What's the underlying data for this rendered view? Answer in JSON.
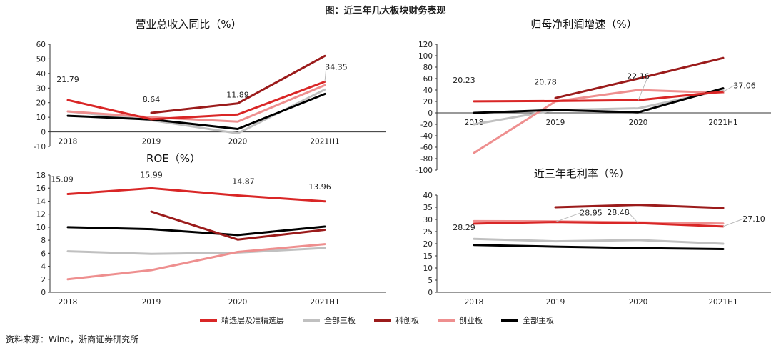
{
  "figure_title": "图：近三年几大板块财务表现",
  "source": "资料来源：Wind，浙商证券研究所",
  "legend": [
    {
      "name": "精选层及准精选层",
      "color": "#d92626"
    },
    {
      "name": "全部三板",
      "color": "#c0c0c0"
    },
    {
      "name": "科创板",
      "color": "#9b1b1b"
    },
    {
      "name": "创业板",
      "color": "#ee8f8f"
    },
    {
      "name": "全部主板",
      "color": "#000000"
    }
  ],
  "chart_data": [
    {
      "type": "line",
      "title": "营业总收入同比（%）",
      "categories": [
        "2018",
        "2019",
        "2020",
        "2021H1"
      ],
      "ylim": [
        -10,
        60
      ],
      "yticks": [
        -10,
        0,
        10,
        20,
        30,
        40,
        50,
        60
      ],
      "series": [
        {
          "name": "精选层及准精选层",
          "color": "#d92626",
          "values": [
            21.79,
            8.64,
            11.89,
            34.35
          ]
        },
        {
          "name": "全部三板",
          "color": "#c0c0c0",
          "values": [
            14,
            8,
            -1,
            29
          ]
        },
        {
          "name": "科创板",
          "color": "#9b1b1b",
          "values": [
            null,
            13,
            19.5,
            52
          ]
        },
        {
          "name": "创业板",
          "color": "#ee8f8f",
          "values": [
            14,
            10,
            7,
            32
          ]
        },
        {
          "name": "全部主板",
          "color": "#000000",
          "values": [
            11,
            8.5,
            2,
            26
          ]
        }
      ],
      "labels": [
        {
          "series": 0,
          "index": 0,
          "text": "21.79"
        },
        {
          "series": 0,
          "index": 1,
          "text": "8.64"
        },
        {
          "series": 0,
          "index": 2,
          "text": "11.89"
        },
        {
          "series": 0,
          "index": 3,
          "text": "34.35"
        }
      ]
    },
    {
      "type": "line",
      "title": "归母净利润增速（%）",
      "categories": [
        "2018",
        "2019",
        "2020",
        "2021H1"
      ],
      "ylim": [
        -100,
        120
      ],
      "yticks": [
        -100,
        -80,
        -60,
        -40,
        -20,
        0,
        20,
        40,
        60,
        80,
        100,
        120
      ],
      "series": [
        {
          "name": "精选层及准精选层",
          "color": "#d92626",
          "values": [
            20.23,
            20.78,
            22.16,
            37.06
          ]
        },
        {
          "name": "全部三板",
          "color": "#c0c0c0",
          "values": [
            -20,
            5,
            8,
            40
          ]
        },
        {
          "name": "科创板",
          "color": "#9b1b1b",
          "values": [
            null,
            26,
            60,
            96
          ]
        },
        {
          "name": "创业板",
          "color": "#ee8f8f",
          "values": [
            -70,
            20,
            40,
            35
          ]
        },
        {
          "name": "全部主板",
          "color": "#000000",
          "values": [
            0,
            5,
            1,
            43
          ]
        }
      ],
      "labels": [
        {
          "series": 0,
          "index": 0,
          "text": "20.23"
        },
        {
          "series": 0,
          "index": 1,
          "text": "20.78"
        },
        {
          "series": 0,
          "index": 2,
          "text": "22.16"
        },
        {
          "series": 0,
          "index": 3,
          "text": "37.06"
        }
      ]
    },
    {
      "type": "line",
      "title": "ROE（%）",
      "categories": [
        "2018",
        "2019",
        "2020",
        "2021H1"
      ],
      "ylim": [
        0,
        18
      ],
      "yticks": [
        0,
        2,
        4,
        6,
        8,
        10,
        12,
        14,
        16,
        18
      ],
      "series": [
        {
          "name": "精选层及准精选层",
          "color": "#d92626",
          "values": [
            15.09,
            15.99,
            14.87,
            13.96
          ]
        },
        {
          "name": "全部三板",
          "color": "#c0c0c0",
          "values": [
            6.3,
            5.9,
            6.1,
            6.8
          ]
        },
        {
          "name": "科创板",
          "color": "#9b1b1b",
          "values": [
            null,
            12.4,
            8.1,
            9.6
          ]
        },
        {
          "name": "创业板",
          "color": "#ee8f8f",
          "values": [
            2,
            3.4,
            6.2,
            7.4
          ]
        },
        {
          "name": "全部主板",
          "color": "#000000",
          "values": [
            10,
            9.7,
            8.8,
            10.1
          ]
        }
      ],
      "labels": [
        {
          "series": 0,
          "index": 0,
          "text": "15.09"
        },
        {
          "series": 0,
          "index": 1,
          "text": "15.99"
        },
        {
          "series": 0,
          "index": 2,
          "text": "14.87"
        },
        {
          "series": 0,
          "index": 3,
          "text": "13.96"
        }
      ]
    },
    {
      "type": "line",
      "title": "近三年毛利率（%）",
      "categories": [
        "2018",
        "2019",
        "2020",
        "2021H1"
      ],
      "ylim": [
        0,
        40
      ],
      "yticks": [
        0,
        5,
        10,
        15,
        20,
        25,
        30,
        35,
        40
      ],
      "series": [
        {
          "name": "精选层及准精选层",
          "color": "#d92626",
          "values": [
            28.29,
            28.95,
            28.48,
            27.1
          ]
        },
        {
          "name": "全部三板",
          "color": "#c0c0c0",
          "values": [
            22,
            21,
            21.5,
            20
          ]
        },
        {
          "name": "科创板",
          "color": "#9b1b1b",
          "values": [
            null,
            35,
            36,
            34.7
          ]
        },
        {
          "name": "创业板",
          "color": "#ee8f8f",
          "values": [
            29.3,
            29.2,
            28.8,
            28.3
          ]
        },
        {
          "name": "全部主板",
          "color": "#000000",
          "values": [
            19.5,
            18.8,
            18.2,
            17.8
          ]
        }
      ],
      "labels": [
        {
          "series": 0,
          "index": 0,
          "text": "28.29"
        },
        {
          "series": 0,
          "index": 1,
          "text": "28.95"
        },
        {
          "series": 0,
          "index": 2,
          "text": "28.48"
        },
        {
          "series": 0,
          "index": 3,
          "text": "27.10"
        }
      ]
    }
  ]
}
